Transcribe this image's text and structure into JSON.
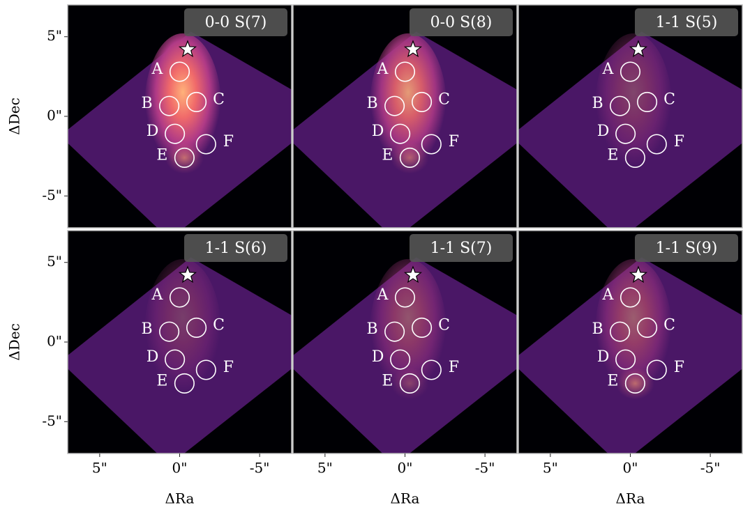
{
  "chart_data": [
    {
      "type": "image",
      "title": "0-0 S(7)",
      "xlim": [
        7,
        -7
      ],
      "ylim": [
        -7,
        7
      ],
      "yticks": [
        {
          "value": 5,
          "label": "5\""
        },
        {
          "value": 0,
          "label": "0\""
        },
        {
          "value": -5,
          "label": "-5\""
        }
      ],
      "ylabel": "ΔDec",
      "star": {
        "x": -0.5,
        "y": 4.2
      },
      "regions": [
        {
          "label": "A",
          "x": 0,
          "y": 2.8,
          "radius": 0.6
        },
        {
          "label": "B",
          "x": 0.65,
          "y": 0.65,
          "radius": 0.6
        },
        {
          "label": "C",
          "x": -1.05,
          "y": 0.9,
          "radius": 0.6
        },
        {
          "label": "D",
          "x": 0.3,
          "y": -1.1,
          "radius": 0.6
        },
        {
          "label": "E",
          "x": -0.3,
          "y": -2.6,
          "radius": 0.6
        },
        {
          "label": "F",
          "x": -1.65,
          "y": -1.75,
          "radius": 0.6
        }
      ]
    },
    {
      "type": "image",
      "title": "0-0 S(8)",
      "xlim": [
        7,
        -7
      ],
      "ylim": [
        -7,
        7
      ],
      "star": {
        "x": -0.5,
        "y": 4.2
      },
      "regions": [
        {
          "label": "A",
          "x": 0,
          "y": 2.8,
          "radius": 0.6
        },
        {
          "label": "B",
          "x": 0.65,
          "y": 0.65,
          "radius": 0.6
        },
        {
          "label": "C",
          "x": -1.05,
          "y": 0.9,
          "radius": 0.6
        },
        {
          "label": "D",
          "x": 0.3,
          "y": -1.1,
          "radius": 0.6
        },
        {
          "label": "E",
          "x": -0.3,
          "y": -2.6,
          "radius": 0.6
        },
        {
          "label": "F",
          "x": -1.65,
          "y": -1.75,
          "radius": 0.6
        }
      ]
    },
    {
      "type": "image",
      "title": "1-1 S(5)",
      "xlim": [
        7,
        -7
      ],
      "ylim": [
        -7,
        7
      ],
      "star": {
        "x": -0.5,
        "y": 4.2
      },
      "regions": [
        {
          "label": "A",
          "x": 0,
          "y": 2.8,
          "radius": 0.6
        },
        {
          "label": "B",
          "x": 0.65,
          "y": 0.65,
          "radius": 0.6
        },
        {
          "label": "C",
          "x": -1.05,
          "y": 0.9,
          "radius": 0.6
        },
        {
          "label": "D",
          "x": 0.3,
          "y": -1.1,
          "radius": 0.6
        },
        {
          "label": "E",
          "x": -0.3,
          "y": -2.6,
          "radius": 0.6
        },
        {
          "label": "F",
          "x": -1.65,
          "y": -1.75,
          "radius": 0.6
        }
      ]
    },
    {
      "type": "image",
      "title": "1-1 S(6)",
      "xlim": [
        7,
        -7
      ],
      "ylim": [
        -7,
        7
      ],
      "xticks": [
        {
          "value": 5,
          "label": "5\""
        },
        {
          "value": 0,
          "label": "0\""
        },
        {
          "value": -5,
          "label": "-5\""
        }
      ],
      "xlabel": "ΔRa",
      "yticks": [
        {
          "value": 5,
          "label": "5\""
        },
        {
          "value": 0,
          "label": "0\""
        },
        {
          "value": -5,
          "label": "-5\""
        }
      ],
      "ylabel": "ΔDec",
      "star": {
        "x": -0.5,
        "y": 4.2
      },
      "regions": [
        {
          "label": "A",
          "x": 0,
          "y": 2.8,
          "radius": 0.6
        },
        {
          "label": "B",
          "x": 0.65,
          "y": 0.65,
          "radius": 0.6
        },
        {
          "label": "C",
          "x": -1.05,
          "y": 0.9,
          "radius": 0.6
        },
        {
          "label": "D",
          "x": 0.3,
          "y": -1.1,
          "radius": 0.6
        },
        {
          "label": "E",
          "x": -0.3,
          "y": -2.6,
          "radius": 0.6
        },
        {
          "label": "F",
          "x": -1.65,
          "y": -1.75,
          "radius": 0.6
        }
      ]
    },
    {
      "type": "image",
      "title": "1-1 S(7)",
      "xlim": [
        7,
        -7
      ],
      "ylim": [
        -7,
        7
      ],
      "xticks": [
        {
          "value": 5,
          "label": "5\""
        },
        {
          "value": 0,
          "label": "0\""
        },
        {
          "value": -5,
          "label": "-5\""
        }
      ],
      "xlabel": "ΔRa",
      "star": {
        "x": -0.5,
        "y": 4.2
      },
      "regions": [
        {
          "label": "A",
          "x": 0,
          "y": 2.8,
          "radius": 0.6
        },
        {
          "label": "B",
          "x": 0.65,
          "y": 0.65,
          "radius": 0.6
        },
        {
          "label": "C",
          "x": -1.05,
          "y": 0.9,
          "radius": 0.6
        },
        {
          "label": "D",
          "x": 0.3,
          "y": -1.1,
          "radius": 0.6
        },
        {
          "label": "E",
          "x": -0.3,
          "y": -2.6,
          "radius": 0.6
        },
        {
          "label": "F",
          "x": -1.65,
          "y": -1.75,
          "radius": 0.6
        }
      ]
    },
    {
      "type": "image",
      "title": "1-1 S(9)",
      "xlim": [
        7,
        -7
      ],
      "ylim": [
        -7,
        7
      ],
      "xticks": [
        {
          "value": 5,
          "label": "5\""
        },
        {
          "value": 0,
          "label": "0\""
        },
        {
          "value": -5,
          "label": "-5\""
        }
      ],
      "xlabel": "ΔRa",
      "star": {
        "x": -0.5,
        "y": 4.2
      },
      "regions": [
        {
          "label": "A",
          "x": 0,
          "y": 2.8,
          "radius": 0.6
        },
        {
          "label": "B",
          "x": 0.65,
          "y": 0.65,
          "radius": 0.6
        },
        {
          "label": "C",
          "x": -1.05,
          "y": 0.9,
          "radius": 0.6
        },
        {
          "label": "D",
          "x": 0.3,
          "y": -1.1,
          "radius": 0.6
        },
        {
          "label": "E",
          "x": -0.3,
          "y": -2.6,
          "radius": 0.6
        },
        {
          "label": "F",
          "x": -1.65,
          "y": -1.75,
          "radius": 0.6
        }
      ]
    }
  ]
}
